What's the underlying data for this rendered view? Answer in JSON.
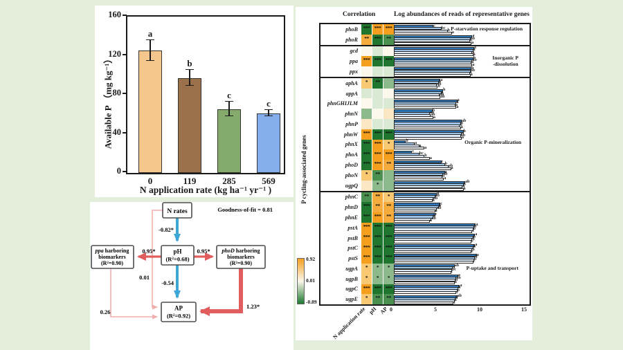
{
  "chart_data": [
    {
      "type": "bar",
      "title": "",
      "ylabel": "Available P （mg kg⁻¹）",
      "xlabel": "N application rate (kg ha⁻¹ yr⁻¹ )",
      "categories": [
        "0",
        "119",
        "285",
        "569"
      ],
      "values": [
        125,
        97,
        65,
        61
      ],
      "errors": [
        10,
        8,
        7,
        3
      ],
      "letters": [
        "a",
        "b",
        "c",
        "c"
      ],
      "bar_colors": [
        "#F6C78C",
        "#9A714B",
        "#84AB6C",
        "#85AFEC"
      ],
      "yticks": [
        0,
        40,
        80,
        120,
        160
      ],
      "ylim": [
        0,
        160
      ],
      "grid": false
    },
    {
      "type": "diagram",
      "goodness_of_fit": "Goodness-of-fit = 0.81",
      "nodes": {
        "n_rates": "N rates",
        "ph_line1": "pH",
        "ph_line2": "(R²=0.68)",
        "ppa_gene": "ppa",
        "ppa_rest": " harboring",
        "ppa_line2": "biomarkers",
        "ppa_line3": "(R²=0.90)",
        "phod_gene": "phoD",
        "phod_rest": " harboring",
        "phod_line2": "biomarkers",
        "phod_line3": "(R²=0.90)",
        "ap_line1": "AP",
        "ap_line2": "(R²=0.92)"
      },
      "paths": {
        "n_to_ph": "-0.82*",
        "ph_to_ppa": "0.95*",
        "ph_to_phod": "0.95*",
        "ph_to_ap": "-0.54",
        "phod_to_ap": "1.23*",
        "ppa_to_ap": "0.26",
        "n_to_ap": "0.01"
      },
      "colors": {
        "negative_arrow": "#3FA7D6",
        "positive_arrow": "#E25D5D",
        "weak_arrow": "#F2AEAA"
      }
    },
    {
      "type": "heatmap+bar",
      "correlation_header": "Correlation",
      "abundance_header": "Log abundances of reads of representative genes",
      "ylabel": "P cycling-associated genes",
      "col_labels": [
        "N application rate",
        "pH",
        "AP"
      ],
      "xticks": [
        0,
        5,
        10,
        15
      ],
      "xlim": [
        0,
        15
      ],
      "legend": {
        "max": "0.92",
        "mid": "0.01",
        "min": "-0.89"
      },
      "bar_colors": [
        "#2E74B5",
        "#9DC3E6",
        "#DEEAF6",
        "#F2F2F2"
      ],
      "cell_levels": {
        "o3": "#F49F1E",
        "o2": "#F6AC3C",
        "o1": "#F9C873",
        "o0": "#FCE7C4",
        "g3": "#20762F",
        "g2": "#4A9150",
        "g1": "#8CBA8C",
        "g0": "#D9E9D3",
        "w": "#FCF8EC"
      },
      "section_labels": [
        {
          "lines": [
            "P-starvation response regulation"
          ]
        },
        {
          "lines": [
            "Inorganic P",
            "-dissolution"
          ]
        },
        {
          "lines": [
            "Organic P-mineralization"
          ]
        },
        {
          "lines": [
            "P-uptake and transport"
          ]
        }
      ],
      "genes": [
        {
          "name": "phoB",
          "cells": [
            "g3***",
            "o3***",
            "o3***"
          ],
          "bars": [
            4.3,
            5.2,
            5.9,
            6.4
          ],
          "letters": [
            "c",
            "bc",
            "b",
            "a"
          ]
        },
        {
          "name": "phoR",
          "cells": [
            "o2**",
            "g3***",
            "g2**"
          ],
          "bars": [
            8.7,
            8.5,
            8.4,
            8.6
          ],
          "letters": [
            "a",
            "ab",
            "b",
            "a"
          ]
        },
        {
          "name": "gcd",
          "sec_start": true,
          "cells": [
            "w",
            "g0",
            "w"
          ],
          "bars": [
            8.9,
            8.8,
            8.7,
            8.8
          ],
          "letters": [
            "a",
            "a",
            "a",
            "a"
          ]
        },
        {
          "name": "ppa",
          "cells": [
            "o3***",
            "g3***",
            "g3***"
          ],
          "bars": [
            8.8,
            8.7,
            8.6,
            8.7
          ],
          "letters": [
            "b",
            "ab",
            "a",
            "a"
          ]
        },
        {
          "name": "ppx",
          "cells": [
            "w",
            "g0",
            "g0"
          ],
          "bars": [
            8.6,
            8.5,
            8.4,
            8.5
          ],
          "letters": [
            "b",
            "ab",
            "a",
            "a"
          ]
        },
        {
          "name": "aphA",
          "sec_start": true,
          "cells": [
            "o1*",
            "g3**",
            "g1"
          ],
          "bars": [
            5.1,
            4.9,
            4.7,
            4.8
          ],
          "letters": [
            "a",
            "b",
            "ab",
            "b"
          ]
        },
        {
          "name": "appA",
          "cells": [
            "g0",
            "g0",
            "w"
          ],
          "bars": [
            5.4,
            5.2,
            5.0,
            5.1
          ],
          "letters": [
            "b",
            "a",
            "ab",
            "ab"
          ]
        },
        {
          "name": "phnGHIJLM",
          "cells": [
            "w",
            "g0",
            "g0"
          ],
          "bars": [
            7.0,
            6.9,
            6.8,
            6.9
          ],
          "letters": [
            "a",
            "a",
            "a",
            "a"
          ]
        },
        {
          "name": "phnN",
          "cells": [
            "g1",
            "w",
            "o0"
          ],
          "bars": [
            4.2,
            3.9,
            4.0,
            4.3
          ],
          "letters": [
            "b",
            "ab",
            "ab",
            "a"
          ]
        },
        {
          "name": "phnP",
          "cells": [
            "o0",
            "g0",
            "g0"
          ],
          "bars": [
            7.5,
            7.4,
            7.3,
            7.4
          ],
          "letters": [
            "ab",
            "a",
            "b",
            "a"
          ]
        },
        {
          "name": "phnW",
          "cells": [
            "o3***",
            "g3***",
            "g3***"
          ],
          "bars": [
            7.7,
            7.5,
            7.4,
            7.5
          ],
          "letters": [
            "b",
            "a",
            "ab",
            "a"
          ]
        },
        {
          "name": "phnX",
          "cells": [
            "g3***",
            "o3***",
            "o1*"
          ],
          "bars": [
            1.2,
            2.2,
            2.7,
            3.3
          ],
          "letters": [
            "b",
            "a",
            "a",
            "a"
          ]
        },
        {
          "name": "phoA",
          "cells": [
            "g3***",
            "o3***",
            "o3***"
          ],
          "bars": [
            1.9,
            2.7,
            3.3,
            3.9
          ],
          "letters": [
            "c",
            "bc",
            "b",
            "a"
          ]
        },
        {
          "name": "phoD",
          "cells": [
            "g3***",
            "o3***",
            "o2**"
          ],
          "bars": [
            5.2,
            5.6,
            6.0,
            6.3
          ],
          "letters": [
            "c",
            "b",
            "ab",
            "a"
          ]
        },
        {
          "name": "phoN",
          "cells": [
            "o1*",
            "g2**",
            "g1"
          ],
          "bars": [
            5.6,
            5.4,
            5.3,
            5.5
          ],
          "letters": [
            "a",
            "ab",
            "b",
            "a"
          ]
        },
        {
          "name": "ugpQ",
          "cells": [
            "o0",
            "g1*",
            "g1"
          ],
          "bars": [
            7.9,
            7.7,
            7.6,
            7.7
          ],
          "letters": [
            "ab",
            "b",
            "a",
            "a"
          ]
        },
        {
          "name": "phnC",
          "sec_start": true,
          "cells": [
            "g2**",
            "o2**",
            "o1*"
          ],
          "bars": [
            4.7,
            4.5,
            4.3,
            4.2
          ],
          "letters": [
            "b",
            "ab",
            "ab",
            "a"
          ]
        },
        {
          "name": "phnD",
          "cells": [
            "g3***",
            "o2**",
            "o2**"
          ],
          "bars": [
            5.1,
            4.9,
            4.7,
            4.5
          ],
          "letters": [
            "c",
            "b",
            "ab",
            "a"
          ]
        },
        {
          "name": "phnE",
          "cells": [
            "g3***",
            "o3***",
            "o2**"
          ],
          "bars": [
            4.5,
            4.3,
            4.1,
            3.9
          ],
          "letters": [
            "c",
            "b",
            "ab",
            "a"
          ]
        },
        {
          "name": "pstA",
          "cells": [
            "o3***",
            "g3***",
            "g3***"
          ],
          "bars": [
            9.1,
            8.9,
            8.8,
            8.7
          ],
          "letters": [
            "a",
            "b",
            "b",
            "c"
          ]
        },
        {
          "name": "pstB",
          "cells": [
            "o3***",
            "g3***",
            "g3***"
          ],
          "bars": [
            9.0,
            8.8,
            8.7,
            8.6
          ],
          "letters": [
            "a",
            "b",
            "b",
            "c"
          ]
        },
        {
          "name": "pstC",
          "cells": [
            "o3***",
            "g3***",
            "g3***"
          ],
          "bars": [
            9.0,
            8.8,
            8.7,
            8.6
          ],
          "letters": [
            "a",
            "b",
            "b",
            "c"
          ]
        },
        {
          "name": "pstS",
          "cells": [
            "o3***",
            "g3***",
            "g3***"
          ],
          "bars": [
            9.2,
            9.0,
            8.9,
            8.8
          ],
          "letters": [
            "a",
            "b",
            "b",
            "c"
          ]
        },
        {
          "name": "ugpA",
          "cells": [
            "o1*",
            "g1*",
            "g1*"
          ],
          "bars": [
            6.7,
            6.5,
            6.4,
            6.3
          ],
          "letters": [
            "ab",
            "a",
            "bc",
            "c"
          ]
        },
        {
          "name": "ugpB",
          "cells": [
            "o1*",
            "g1*",
            "g1*"
          ],
          "bars": [
            7.1,
            6.9,
            6.8,
            6.7
          ],
          "letters": [
            "a",
            "ab",
            "b",
            "a"
          ]
        },
        {
          "name": "ugpC",
          "cells": [
            "o3***",
            "g3***",
            "g3***"
          ],
          "bars": [
            7.3,
            7.1,
            7.0,
            6.9
          ],
          "letters": [
            "a",
            "b",
            "b",
            "c"
          ]
        },
        {
          "name": "ugpE",
          "cells": [
            "o1*",
            "g2**",
            "g2**"
          ],
          "bars": [
            7.0,
            6.8,
            6.7,
            6.6
          ],
          "letters": [
            "ab",
            "b",
            "a",
            "c"
          ]
        }
      ]
    }
  ]
}
